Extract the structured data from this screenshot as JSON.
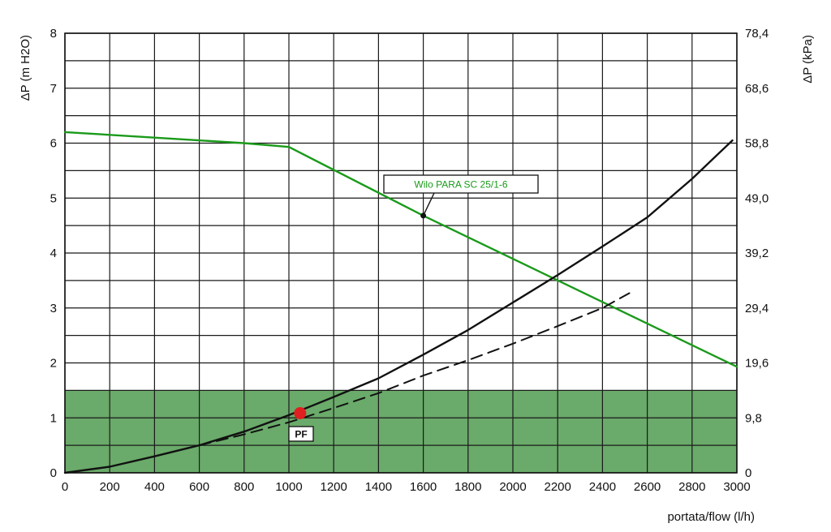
{
  "chart_data": {
    "type": "line",
    "title": "",
    "xlabel": "portata/flow (l/h)",
    "ylabel_left": "ΔP (m H2O)",
    "ylabel_right": "ΔP (kPa)",
    "xlim": [
      0,
      3000
    ],
    "ylim": [
      0,
      8
    ],
    "grid": true,
    "x_ticks": [
      "0",
      "200",
      "400",
      "600",
      "800",
      "1000",
      "1200",
      "1400",
      "1600",
      "1800",
      "2000",
      "2200",
      "2400",
      "2600",
      "2800",
      "3000"
    ],
    "y_ticks_left": [
      "0",
      "1",
      "2",
      "3",
      "4",
      "5",
      "6",
      "7",
      "8"
    ],
    "y_ticks_right": [
      "0",
      "9,8",
      "19,6",
      "29,4",
      "39,2",
      "49,0",
      "58,8",
      "68,6",
      "78,4"
    ],
    "shaded_band": {
      "y_from": 0,
      "y_to": 1.5,
      "color": "#6aaa6a"
    },
    "series": [
      {
        "name": "Wilo PARA SC 25/1-6",
        "style": "solid",
        "color": "#1a9a1a",
        "x": [
          0,
          800,
          1000,
          1600,
          3000
        ],
        "y": [
          6.2,
          6.0,
          5.93,
          4.68,
          1.93
        ]
      },
      {
        "style": "solid",
        "color": "#111111",
        "x": [
          0,
          200,
          400,
          600,
          800,
          1000,
          1200,
          1400,
          1600,
          1800,
          2000,
          2200,
          2400,
          2600,
          2800,
          2980
        ],
        "y": [
          0,
          0.11,
          0.3,
          0.5,
          0.75,
          1.05,
          1.38,
          1.72,
          2.15,
          2.6,
          3.1,
          3.6,
          4.12,
          4.65,
          5.35,
          6.05
        ]
      },
      {
        "style": "dashed",
        "color": "#111111",
        "x": [
          600,
          800,
          1000,
          1200,
          1400,
          1600,
          1800,
          2000,
          2200,
          2400,
          2520
        ],
        "y": [
          0.5,
          0.7,
          0.92,
          1.18,
          1.45,
          1.77,
          2.05,
          2.35,
          2.67,
          3.0,
          3.27
        ]
      }
    ],
    "annotations": {
      "legend_label": "Wilo PARA SC 25/1-6",
      "legend_point": {
        "x": 1600,
        "y": 4.68
      },
      "operating_point": {
        "x": 1050,
        "y": 1.1,
        "color": "#e02020"
      },
      "pf_label": "PF"
    }
  }
}
